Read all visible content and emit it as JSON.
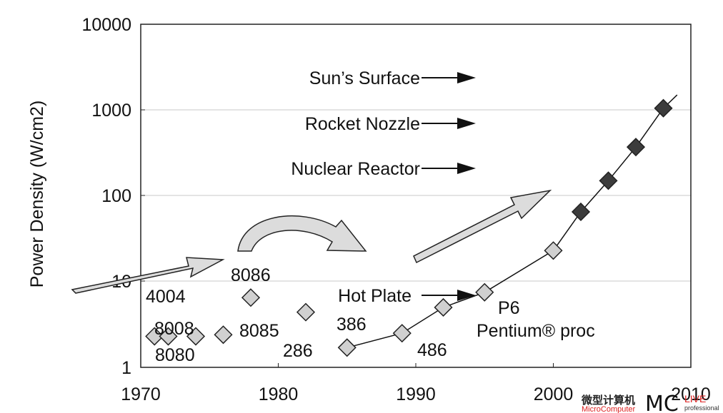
{
  "chart_data": {
    "type": "scatter",
    "title": "",
    "ylabel": "Power Density (W/cm2)",
    "xlabel": "",
    "y_scale": "log",
    "ylim": [
      1,
      10000
    ],
    "xlim": [
      1970,
      2010
    ],
    "x_ticks": [
      "1970",
      "1980",
      "1990",
      "2000",
      "2010"
    ],
    "y_ticks": [
      "1",
      "10",
      "100",
      "1000",
      "10000"
    ],
    "grid": "horizontal",
    "points": [
      {
        "x": 1971,
        "y": 2.3,
        "style": "light"
      },
      {
        "x": 1972,
        "y": 2.3,
        "style": "light"
      },
      {
        "x": 1974,
        "y": 2.3,
        "style": "light"
      },
      {
        "x": 1976,
        "y": 2.4,
        "style": "light"
      },
      {
        "x": 1978,
        "y": 6.5,
        "style": "light"
      },
      {
        "x": 1982,
        "y": 4.4,
        "style": "light"
      },
      {
        "x": 1985,
        "y": 1.7,
        "style": "light"
      },
      {
        "x": 1989,
        "y": 2.5,
        "style": "light"
      },
      {
        "x": 1992,
        "y": 5.0,
        "style": "light"
      },
      {
        "x": 1995,
        "y": 7.5,
        "style": "light"
      },
      {
        "x": 2000,
        "y": 23,
        "style": "light"
      },
      {
        "x": 2002,
        "y": 65,
        "style": "dark"
      },
      {
        "x": 2004,
        "y": 150,
        "style": "dark"
      },
      {
        "x": 2006,
        "y": 370,
        "style": "dark"
      },
      {
        "x": 2008,
        "y": 1050,
        "style": "dark"
      }
    ],
    "line_points": [
      {
        "x": 1985,
        "y": 1.7
      },
      {
        "x": 1989,
        "y": 2.5
      },
      {
        "x": 1992,
        "y": 5.0
      },
      {
        "x": 1995,
        "y": 7.5
      },
      {
        "x": 2000,
        "y": 23
      },
      {
        "x": 2002,
        "y": 65
      },
      {
        "x": 2004,
        "y": 150
      },
      {
        "x": 2006,
        "y": 370
      },
      {
        "x": 2008,
        "y": 1050
      },
      {
        "x": 2009,
        "y": 1500
      }
    ],
    "point_labels": [
      "4004",
      "8008",
      "8080",
      "8086",
      "8085",
      "286",
      "386",
      "486",
      "P6",
      "Pentium® proc"
    ],
    "reference_levels": [
      "Sun’s Surface",
      "Rocket Nozzle",
      "Nuclear Reactor",
      "Hot Plate"
    ],
    "colors": {
      "light": "#d0d0d0",
      "dark": "#3c3c3c",
      "arrow_fill": "#dcdcdc",
      "stroke": "#222222",
      "grid": "#c8c8c8"
    }
  },
  "watermark": {
    "cn_title": "微型计算机",
    "sub": "MicroComputer",
    "big": "MC",
    "live": "LIVE",
    "pro": "professional"
  }
}
